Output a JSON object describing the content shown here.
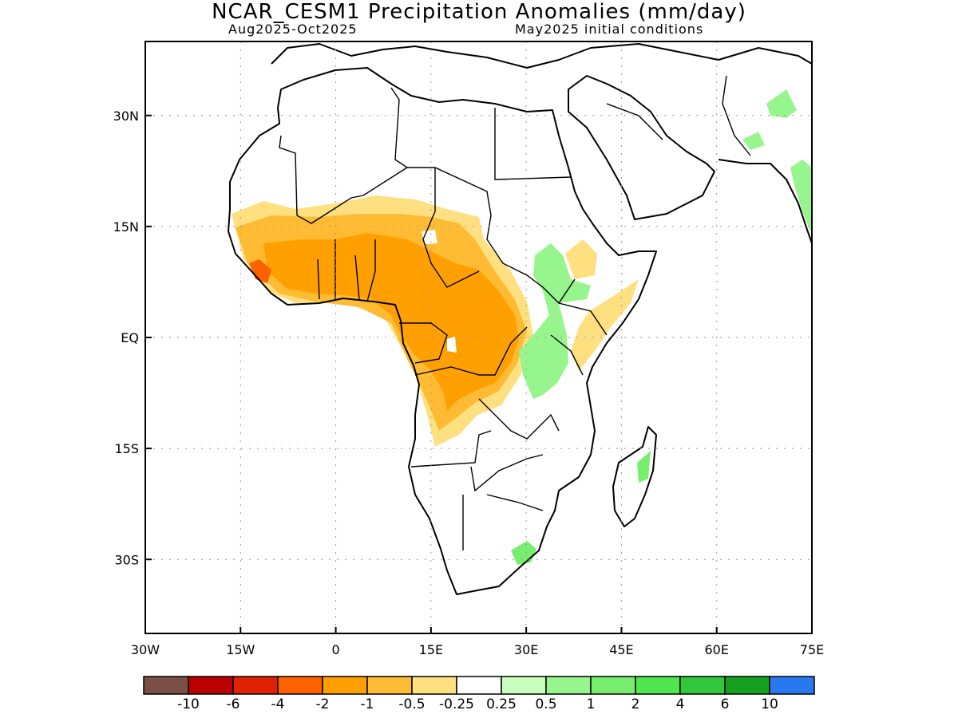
{
  "title": "NCAR_CESM1 Precipitation Anomalies (mm/day)",
  "subtitle_left": "Aug2025-Oct2025",
  "subtitle_right": "May2025 initial conditions",
  "lon_ticks": [
    "30W",
    "15W",
    "0",
    "15E",
    "30E",
    "45E",
    "60E",
    "75E"
  ],
  "lat_ticks": [
    "30N",
    "15N",
    "EQ",
    "15S",
    "30S"
  ],
  "colorbar": {
    "colors": [
      "#7b4f46",
      "#bb0000",
      "#e02000",
      "#ff6000",
      "#ffa000",
      "#ffbb33",
      "#ffe080",
      "#ffffff",
      "#c8ffbe",
      "#96f58c",
      "#78ee6e",
      "#50e650",
      "#32c83c",
      "#14a01e",
      "#2878f0"
    ],
    "labels": [
      "-10",
      "-6",
      "-4",
      "-2",
      "-1",
      "-0.5",
      "-0.25",
      "0.25",
      "0.5",
      "1",
      "2",
      "4",
      "6",
      "10"
    ]
  },
  "map": {
    "lon_range": [
      -30,
      75
    ],
    "lat_range": [
      -40,
      40
    ],
    "grid_lines": "dotted",
    "anomaly_regions": [
      {
        "name": "sahel-light-dry",
        "color": "#ffe080"
      },
      {
        "name": "sahel-moderate-dry",
        "color": "#ffbb33"
      },
      {
        "name": "central-africa-dry",
        "color": "#ffa000"
      },
      {
        "name": "guinea-coast-strong-dry",
        "color": "#ff6000"
      },
      {
        "name": "east-africa-wet",
        "color": "#96f58c"
      },
      {
        "name": "india-wet",
        "color": "#96f58c"
      },
      {
        "name": "southern-africa-wet",
        "color": "#78ee6e"
      }
    ]
  }
}
